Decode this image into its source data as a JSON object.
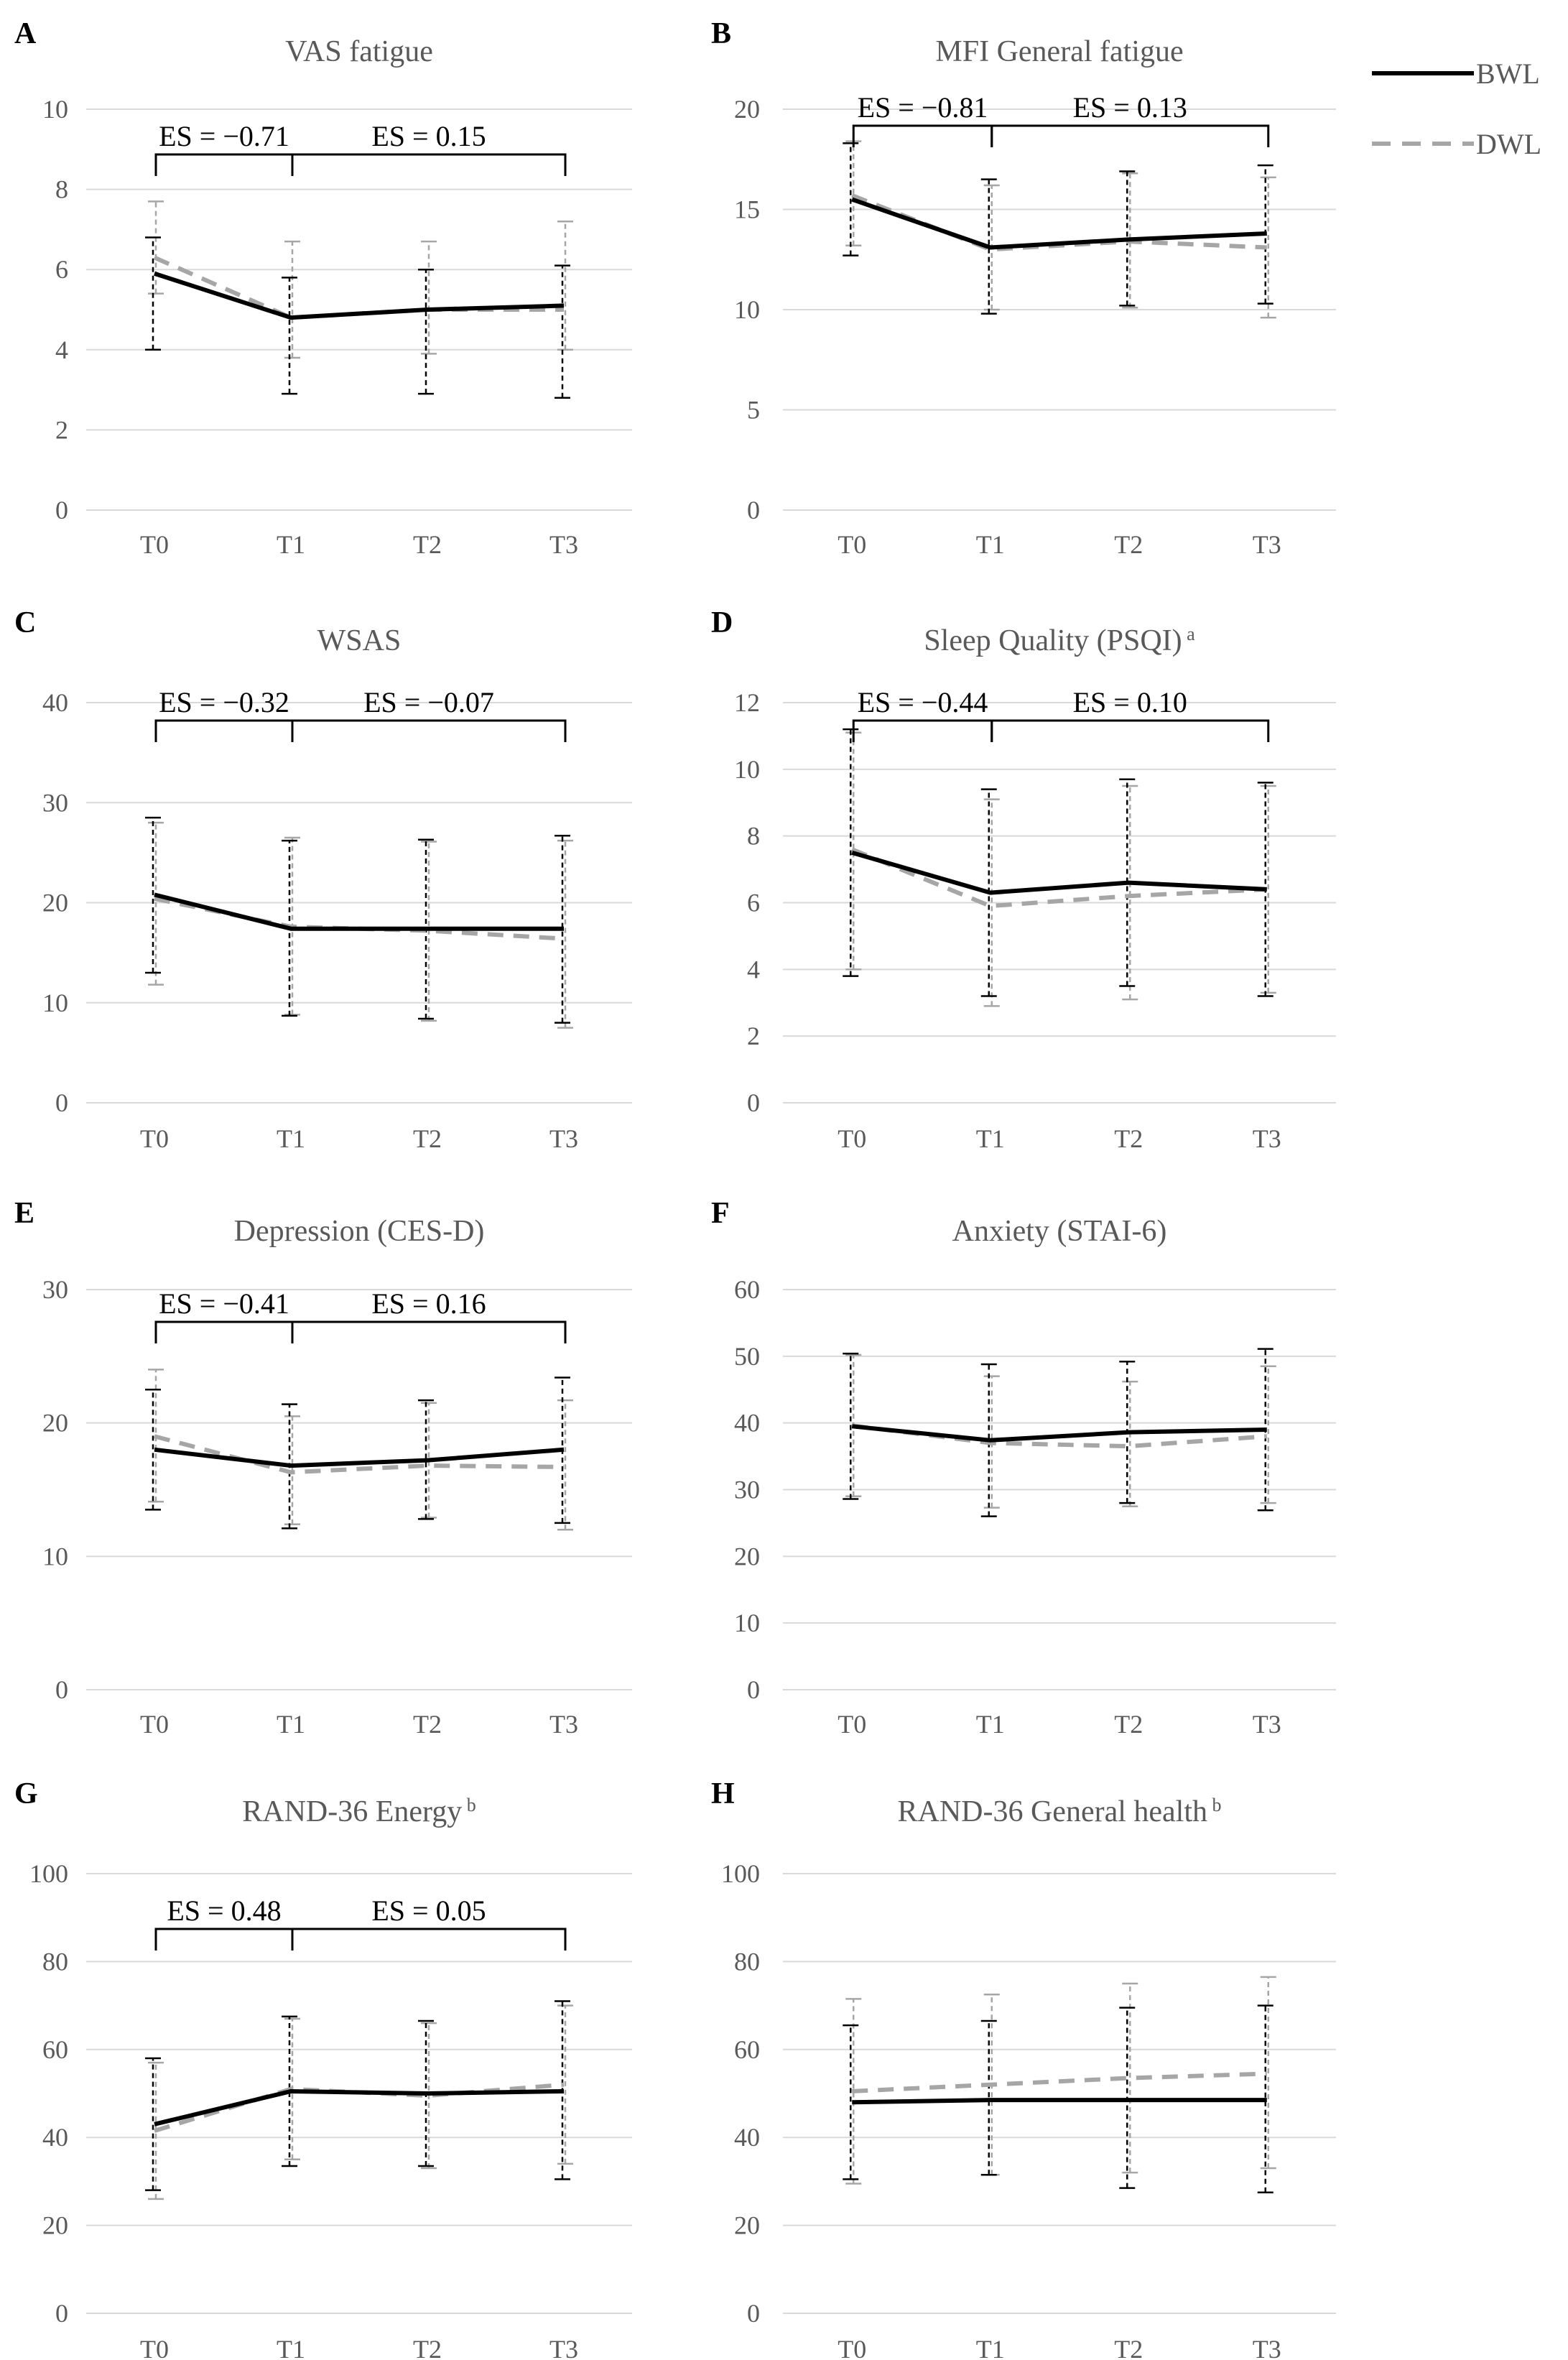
{
  "legend": {
    "bwl": {
      "label": "BWL",
      "color": "#000000"
    },
    "dwl": {
      "label": "DWL",
      "color": "#a6a6a6"
    }
  },
  "chart_data": [
    {
      "panel": "A",
      "type": "line",
      "title": "VAS fatigue",
      "categories": [
        "T0",
        "T1",
        "T2",
        "T3"
      ],
      "ylim": [
        0,
        10
      ],
      "yticks": [
        0,
        2,
        4,
        6,
        8,
        10
      ],
      "grid": true,
      "series": [
        {
          "name": "BWL",
          "values": [
            5.9,
            4.8,
            5.0,
            5.1
          ],
          "err_low": [
            4.0,
            2.9,
            2.9,
            2.8
          ],
          "err_high": [
            6.8,
            5.8,
            6.0,
            6.1
          ]
        },
        {
          "name": "DWL",
          "values": [
            6.3,
            4.8,
            5.0,
            5.0
          ],
          "err_low": [
            5.4,
            3.8,
            3.9,
            4.0
          ],
          "err_high": [
            7.7,
            6.7,
            6.7,
            7.2
          ]
        }
      ],
      "effect_sizes": [
        {
          "label": "ES = −0.71",
          "from": 0,
          "to": 1
        },
        {
          "label": "ES = 0.15",
          "from": 1,
          "to": 3
        }
      ]
    },
    {
      "panel": "B",
      "type": "line",
      "title": "MFI General fatigue",
      "categories": [
        "T0",
        "T1",
        "T2",
        "T3"
      ],
      "ylim": [
        0,
        20
      ],
      "yticks": [
        0,
        5,
        10,
        15,
        20
      ],
      "grid": true,
      "series": [
        {
          "name": "BWL",
          "values": [
            15.5,
            13.1,
            13.5,
            13.8
          ],
          "err_low": [
            12.7,
            9.8,
            10.2,
            10.3
          ],
          "err_high": [
            18.3,
            16.5,
            16.9,
            17.2
          ]
        },
        {
          "name": "DWL",
          "values": [
            15.7,
            13.0,
            13.4,
            13.1
          ],
          "err_low": [
            13.2,
            10.0,
            10.1,
            9.6
          ],
          "err_high": [
            18.4,
            16.2,
            16.8,
            16.6
          ]
        }
      ],
      "effect_sizes": [
        {
          "label": "ES = −0.81",
          "from": 0,
          "to": 1
        },
        {
          "label": "ES = 0.13",
          "from": 1,
          "to": 3
        }
      ]
    },
    {
      "panel": "C",
      "type": "line",
      "title": "WSAS",
      "categories": [
        "T0",
        "T1",
        "T2",
        "T3"
      ],
      "ylim": [
        0,
        40
      ],
      "yticks": [
        0,
        10,
        20,
        30,
        40
      ],
      "grid": true,
      "series": [
        {
          "name": "BWL",
          "values": [
            20.8,
            17.4,
            17.4,
            17.4
          ],
          "err_low": [
            13.0,
            8.7,
            8.4,
            8.0
          ],
          "err_high": [
            28.5,
            26.2,
            26.3,
            26.7
          ]
        },
        {
          "name": "DWL",
          "values": [
            20.4,
            17.6,
            17.2,
            16.4
          ],
          "err_low": [
            11.8,
            8.8,
            8.2,
            7.5
          ],
          "err_high": [
            28.0,
            26.5,
            26.1,
            26.2
          ]
        }
      ],
      "effect_sizes": [
        {
          "label": "ES = −0.32",
          "from": 0,
          "to": 1
        },
        {
          "label": "ES = −0.07",
          "from": 1,
          "to": 3
        }
      ]
    },
    {
      "panel": "D",
      "type": "line",
      "title": "Sleep Quality (PSQI)",
      "title_sup": "a",
      "categories": [
        "T0",
        "T1",
        "T2",
        "T3"
      ],
      "ylim": [
        0,
        12
      ],
      "yticks": [
        0,
        2,
        4,
        6,
        8,
        10,
        12
      ],
      "grid": true,
      "series": [
        {
          "name": "BWL",
          "values": [
            7.5,
            6.3,
            6.6,
            6.4
          ],
          "err_low": [
            3.8,
            3.2,
            3.5,
            3.2
          ],
          "err_high": [
            11.2,
            9.4,
            9.7,
            9.6
          ]
        },
        {
          "name": "DWL",
          "values": [
            7.6,
            5.9,
            6.2,
            6.4
          ],
          "err_low": [
            4.0,
            2.9,
            3.1,
            3.3
          ],
          "err_high": [
            11.1,
            9.1,
            9.5,
            9.5
          ]
        }
      ],
      "effect_sizes": [
        {
          "label": "ES = −0.44",
          "from": 0,
          "to": 1
        },
        {
          "label": "ES = 0.10",
          "from": 1,
          "to": 3
        }
      ]
    },
    {
      "panel": "E",
      "type": "line",
      "title": "Depression (CES-D)",
      "categories": [
        "T0",
        "T1",
        "T2",
        "T3"
      ],
      "ylim": [
        0,
        30
      ],
      "yticks": [
        0,
        10,
        20,
        30
      ],
      "grid": true,
      "series": [
        {
          "name": "BWL",
          "values": [
            18.0,
            16.8,
            17.2,
            18.0
          ],
          "err_low": [
            13.5,
            12.1,
            12.8,
            12.5
          ],
          "err_high": [
            22.5,
            21.4,
            21.7,
            23.4
          ]
        },
        {
          "name": "DWL",
          "values": [
            19.0,
            16.3,
            16.8,
            16.7
          ],
          "err_low": [
            14.1,
            12.4,
            12.9,
            12.0
          ],
          "err_high": [
            24.0,
            20.5,
            21.5,
            21.7
          ]
        }
      ],
      "effect_sizes": [
        {
          "label": "ES = −0.41",
          "from": 0,
          "to": 1
        },
        {
          "label": "ES = 0.16",
          "from": 1,
          "to": 3
        }
      ]
    },
    {
      "panel": "F",
      "type": "line",
      "title": "Anxiety (STAI-6)",
      "categories": [
        "T0",
        "T1",
        "T2",
        "T3"
      ],
      "ylim": [
        0,
        60
      ],
      "yticks": [
        0,
        10,
        20,
        30,
        40,
        50,
        60
      ],
      "grid": true,
      "series": [
        {
          "name": "BWL",
          "values": [
            39.5,
            37.4,
            38.6,
            39.0
          ],
          "err_low": [
            28.6,
            26.0,
            28.0,
            26.9
          ],
          "err_high": [
            50.4,
            48.8,
            49.2,
            51.1
          ]
        },
        {
          "name": "DWL",
          "values": [
            39.6,
            37.0,
            36.5,
            38.0
          ],
          "err_low": [
            29.0,
            27.3,
            27.5,
            28.0
          ],
          "err_high": [
            50.2,
            47.0,
            46.2,
            48.5
          ]
        }
      ],
      "effect_sizes": []
    },
    {
      "panel": "G",
      "type": "line",
      "title": "RAND-36 Energy",
      "title_sup": "b",
      "categories": [
        "T0",
        "T1",
        "T2",
        "T3"
      ],
      "ylim": [
        0,
        100
      ],
      "yticks": [
        0,
        20,
        40,
        60,
        80,
        100
      ],
      "grid": true,
      "series": [
        {
          "name": "BWL",
          "values": [
            43,
            50.5,
            50,
            50.5
          ],
          "err_low": [
            28,
            33.5,
            33.5,
            30.5
          ],
          "err_high": [
            58,
            67.5,
            66.5,
            71
          ]
        },
        {
          "name": "DWL",
          "values": [
            41.5,
            51,
            49.5,
            52
          ],
          "err_low": [
            26,
            35,
            33,
            34
          ],
          "err_high": [
            57,
            67,
            66,
            70
          ]
        }
      ],
      "effect_sizes": [
        {
          "label": "ES = 0.48",
          "from": 0,
          "to": 1
        },
        {
          "label": "ES = 0.05",
          "from": 1,
          "to": 3
        }
      ]
    },
    {
      "panel": "H",
      "type": "line",
      "title": "RAND-36  General health",
      "title_sup": "b",
      "categories": [
        "T0",
        "T1",
        "T2",
        "T3"
      ],
      "ylim": [
        0,
        100
      ],
      "yticks": [
        0,
        20,
        40,
        60,
        80,
        100
      ],
      "grid": true,
      "series": [
        {
          "name": "BWL",
          "values": [
            48,
            48.5,
            48.5,
            48.5
          ],
          "err_low": [
            30.5,
            31.5,
            28.5,
            27.5
          ],
          "err_high": [
            65.5,
            66.5,
            69.5,
            70
          ]
        },
        {
          "name": "DWL",
          "values": [
            50.5,
            52,
            53.5,
            54.5
          ],
          "err_low": [
            29.5,
            31.5,
            32,
            33
          ],
          "err_high": [
            71.5,
            72.5,
            75,
            76.5
          ]
        }
      ],
      "effect_sizes": []
    }
  ]
}
